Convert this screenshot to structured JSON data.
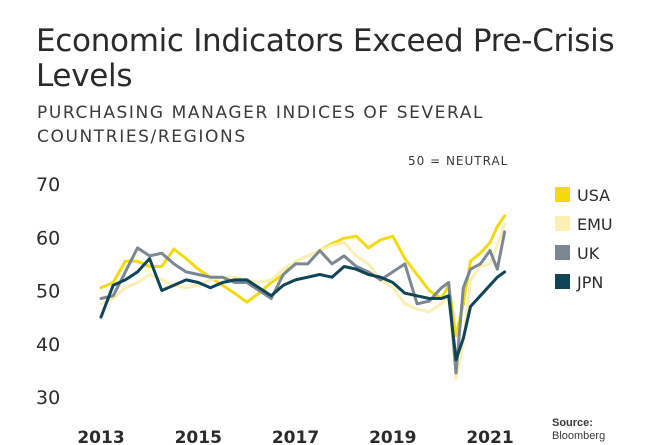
{
  "title": "Economic Indicators Exceed Pre-Crisis Levels",
  "subtitle": "PURCHASING MANAGER INDICES OF SEVERAL COUNTRIES/REGIONS",
  "annotation": "50 = NEUTRAL",
  "source_label": "Source:",
  "source_value": "Bloomberg",
  "chart_data": {
    "type": "line",
    "title": "Economic Indicators Exceed Pre-Crisis Levels",
    "subtitle": "PURCHASING MANAGER INDICES OF SEVERAL COUNTRIES/REGIONS",
    "xlabel": "",
    "ylabel": "",
    "xlim": [
      2013,
      2021.5
    ],
    "ylim": [
      30,
      70
    ],
    "y_ticks": [
      30,
      40,
      50,
      60,
      70
    ],
    "x_ticks": [
      2013,
      2015,
      2017,
      2019,
      2021
    ],
    "grid": false,
    "legend_position": "right",
    "reference_line": 50,
    "series": [
      {
        "name": "USA",
        "color": "#f5d90f",
        "x": [
          2013.0,
          2013.25,
          2013.5,
          2013.75,
          2014.0,
          2014.25,
          2014.5,
          2014.75,
          2015.0,
          2015.25,
          2015.5,
          2015.75,
          2016.0,
          2016.25,
          2016.5,
          2016.75,
          2017.0,
          2017.25,
          2017.5,
          2017.75,
          2018.0,
          2018.25,
          2018.5,
          2018.75,
          2019.0,
          2019.25,
          2019.5,
          2019.75,
          2020.0,
          2020.15,
          2020.3,
          2020.45,
          2020.6,
          2020.8,
          2021.0,
          2021.15,
          2021.3
        ],
        "y": [
          50.5,
          51.5,
          55.5,
          55.5,
          54.5,
          54.5,
          57.8,
          56.0,
          54.0,
          52.5,
          51.0,
          49.5,
          47.8,
          49.5,
          51.5,
          53.0,
          55.5,
          56.5,
          57.5,
          58.8,
          59.8,
          60.2,
          58.0,
          59.5,
          60.2,
          56.0,
          53.0,
          50.0,
          48.5,
          51.0,
          41.5,
          47.5,
          55.5,
          57.0,
          59.0,
          62.0,
          64.0
        ]
      },
      {
        "name": "EMU",
        "color": "#fbefb4",
        "x": [
          2013.0,
          2013.25,
          2013.5,
          2013.75,
          2014.0,
          2014.25,
          2014.5,
          2014.75,
          2015.0,
          2015.25,
          2015.5,
          2015.75,
          2016.0,
          2016.25,
          2016.5,
          2016.75,
          2017.0,
          2017.25,
          2017.5,
          2017.75,
          2018.0,
          2018.25,
          2018.5,
          2018.75,
          2019.0,
          2019.25,
          2019.5,
          2019.75,
          2020.0,
          2020.15,
          2020.3,
          2020.45,
          2020.6,
          2020.8,
          2021.0,
          2021.15,
          2021.3
        ],
        "y": [
          47.5,
          48.5,
          50.5,
          51.5,
          53.0,
          52.0,
          51.0,
          50.5,
          51.0,
          52.0,
          52.5,
          52.5,
          52.0,
          51.5,
          52.0,
          54.0,
          55.5,
          56.5,
          57.5,
          58.5,
          59.0,
          56.5,
          55.0,
          52.0,
          50.5,
          47.5,
          46.5,
          46.0,
          47.5,
          49.0,
          33.5,
          40.0,
          52.0,
          54.5,
          55.0,
          58.5,
          62.5
        ]
      },
      {
        "name": "UK",
        "color": "#7b8793",
        "x": [
          2013.0,
          2013.25,
          2013.5,
          2013.75,
          2014.0,
          2014.25,
          2014.5,
          2014.75,
          2015.0,
          2015.25,
          2015.5,
          2015.75,
          2016.0,
          2016.25,
          2016.5,
          2016.75,
          2017.0,
          2017.25,
          2017.5,
          2017.75,
          2018.0,
          2018.25,
          2018.5,
          2018.75,
          2019.0,
          2019.25,
          2019.5,
          2019.75,
          2020.0,
          2020.15,
          2020.3,
          2020.45,
          2020.6,
          2020.8,
          2021.0,
          2021.15,
          2021.3
        ],
        "y": [
          48.5,
          49.0,
          53.5,
          58.0,
          56.5,
          57.0,
          55.0,
          53.5,
          53.0,
          52.5,
          52.5,
          51.5,
          51.5,
          50.0,
          48.5,
          53.0,
          55.0,
          55.0,
          57.5,
          55.0,
          56.5,
          54.5,
          53.5,
          52.0,
          53.5,
          55.0,
          47.5,
          48.0,
          50.5,
          51.5,
          34.5,
          50.5,
          54.0,
          55.0,
          57.5,
          54.0,
          61.0
        ]
      },
      {
        "name": "JPN",
        "color": "#0f4557",
        "x": [
          2013.0,
          2013.25,
          2013.5,
          2013.75,
          2014.0,
          2014.25,
          2014.5,
          2014.75,
          2015.0,
          2015.25,
          2015.5,
          2015.75,
          2016.0,
          2016.25,
          2016.5,
          2016.75,
          2017.0,
          2017.25,
          2017.5,
          2017.75,
          2018.0,
          2018.25,
          2018.5,
          2018.75,
          2019.0,
          2019.25,
          2019.5,
          2019.75,
          2020.0,
          2020.15,
          2020.3,
          2020.45,
          2020.6,
          2020.8,
          2021.0,
          2021.15,
          2021.3
        ],
        "y": [
          45.0,
          51.0,
          52.0,
          53.5,
          56.0,
          50.0,
          51.0,
          52.0,
          51.5,
          50.5,
          51.5,
          52.0,
          52.0,
          50.5,
          49.0,
          51.0,
          52.0,
          52.5,
          53.0,
          52.5,
          54.5,
          54.0,
          53.0,
          52.5,
          51.5,
          49.5,
          49.0,
          48.5,
          48.5,
          49.0,
          37.0,
          41.0,
          47.0,
          49.0,
          51.0,
          52.5,
          53.5
        ]
      }
    ]
  }
}
